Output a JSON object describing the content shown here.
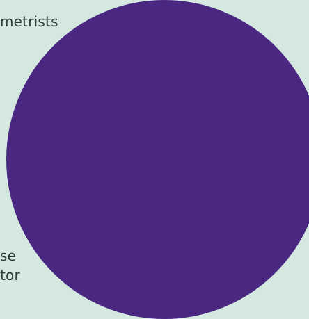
{
  "colors": {
    "background": "#d4e8e0",
    "circle": "#4a2882",
    "text": "#2f3b36"
  },
  "fragments": {
    "top": "metrists",
    "bottom_line_1": "se",
    "bottom_line_2": "tor"
  }
}
